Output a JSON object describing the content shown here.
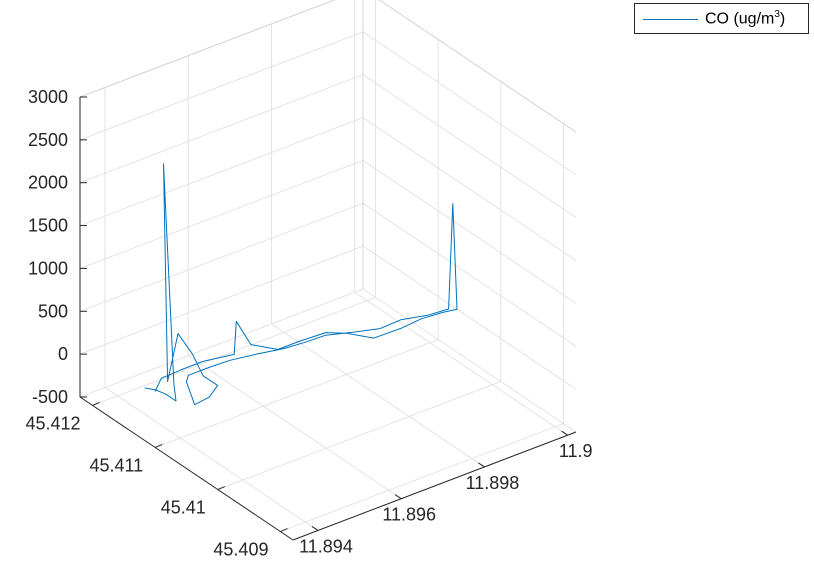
{
  "chart_data": {
    "type": "line",
    "view": "3d",
    "title": "",
    "xlabel": "",
    "ylabel": "",
    "zlabel": "",
    "grid": true,
    "legend_position": "top-right",
    "x_ticks": [
      "11.894",
      "11.896",
      "11.898",
      "11.9"
    ],
    "y_ticks": [
      "45.412",
      "45.411",
      "45.41",
      "45.409"
    ],
    "z_ticks": [
      "3000",
      "2500",
      "2000",
      "1500",
      "1000",
      "500",
      "0",
      "-500"
    ],
    "series": [
      {
        "name_prefix": "CO (ug/m",
        "name_sup": "3",
        "name_suffix": ")",
        "color": "#0072bd",
        "points": [
          [
            11.8936,
            45.4113,
            10
          ],
          [
            11.8937,
            45.4112,
            20
          ],
          [
            11.8938,
            45.4111,
            0
          ],
          [
            11.8939,
            45.411,
            -50
          ],
          [
            11.894,
            45.4111,
            80
          ],
          [
            11.8939,
            45.4112,
            2620
          ],
          [
            11.894,
            45.4112,
            60
          ],
          [
            11.8941,
            45.4111,
            650
          ],
          [
            11.8943,
            45.411,
            420
          ],
          [
            11.8944,
            45.4109,
            200
          ],
          [
            11.8946,
            45.4108,
            100
          ],
          [
            11.8944,
            45.4108,
            0
          ],
          [
            11.8942,
            45.4109,
            -100
          ],
          [
            11.8943,
            45.4111,
            50
          ],
          [
            11.8945,
            45.4112,
            40
          ],
          [
            11.895,
            45.4112,
            40
          ],
          [
            11.8955,
            45.4112,
            30
          ],
          [
            11.896,
            45.4111,
            60
          ],
          [
            11.8965,
            45.411,
            80
          ],
          [
            11.897,
            45.411,
            60
          ],
          [
            11.8975,
            45.411,
            50
          ],
          [
            11.898,
            45.4109,
            40
          ],
          [
            11.8985,
            45.4108,
            40
          ],
          [
            11.899,
            45.4108,
            50
          ],
          [
            11.8995,
            45.4107,
            60
          ],
          [
            11.9,
            45.4107,
            40
          ],
          [
            11.9001,
            45.4107,
            1250
          ],
          [
            11.9002,
            45.4107,
            0
          ],
          [
            11.9,
            45.4108,
            -50
          ],
          [
            11.8995,
            45.4108,
            -30
          ],
          [
            11.899,
            45.4108,
            -50
          ],
          [
            11.8985,
            45.4109,
            -120
          ],
          [
            11.898,
            45.411,
            -20
          ],
          [
            11.8975,
            45.411,
            80
          ],
          [
            11.897,
            45.4111,
            20
          ],
          [
            11.8965,
            45.4111,
            20
          ],
          [
            11.896,
            45.4112,
            120
          ],
          [
            11.8958,
            45.4113,
            380
          ],
          [
            11.8956,
            45.4112,
            80
          ],
          [
            11.895,
            45.4113,
            60
          ],
          [
            11.8945,
            45.4113,
            60
          ],
          [
            11.894,
            45.4113,
            50
          ],
          [
            11.8937,
            45.4112,
            0
          ]
        ]
      }
    ]
  }
}
